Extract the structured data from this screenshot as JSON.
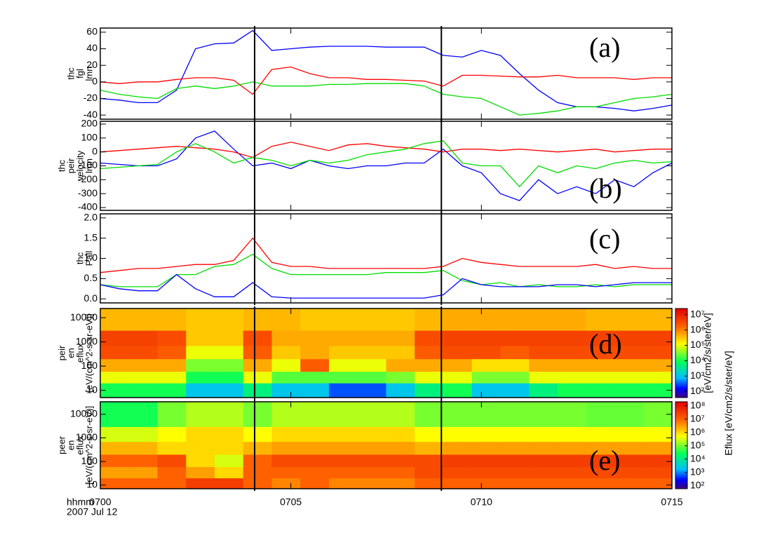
{
  "chart_data": [
    {
      "type": "line",
      "ylabel": [
        "thc",
        "fgl",
        "lmn"
      ],
      "annotation": "(a)",
      "xlim": [
        700,
        715
      ],
      "ylim": [
        -45,
        65
      ],
      "yticks": [
        -40,
        -20,
        0,
        20,
        40,
        60
      ],
      "vlines": [
        704.05,
        708.95
      ],
      "x": [
        700,
        700.5,
        701,
        701.5,
        702,
        702.5,
        703,
        703.5,
        704,
        704.5,
        705,
        705.5,
        706,
        706.5,
        707,
        707.5,
        708,
        708.5,
        709,
        709.5,
        710,
        710.5,
        711,
        711.5,
        712,
        712.5,
        713,
        713.5,
        714,
        714.5,
        715
      ],
      "series": [
        {
          "color": "#0000ff",
          "values": [
            -20,
            -22,
            -25,
            -25,
            -10,
            40,
            46,
            47,
            62,
            38,
            40,
            42,
            43,
            43,
            43,
            42,
            42,
            42,
            32,
            30,
            38,
            32,
            10,
            -10,
            -25,
            -30,
            -30,
            -32,
            -35,
            -32,
            -28
          ]
        },
        {
          "color": "#ff0000",
          "values": [
            0,
            -2,
            0,
            0,
            3,
            5,
            5,
            2,
            -15,
            15,
            18,
            10,
            5,
            5,
            3,
            3,
            2,
            1,
            -5,
            8,
            8,
            7,
            6,
            6,
            8,
            5,
            5,
            5,
            3,
            5,
            5
          ]
        },
        {
          "color": "#00dd00",
          "values": [
            -10,
            -15,
            -18,
            -20,
            -8,
            -5,
            -8,
            -5,
            0,
            -5,
            -5,
            -5,
            -3,
            -3,
            -2,
            -2,
            -2,
            -5,
            -15,
            -18,
            -20,
            -30,
            -40,
            -38,
            -35,
            -30,
            -30,
            -25,
            -20,
            -18,
            -15
          ]
        }
      ]
    },
    {
      "type": "line",
      "ylabel": [
        "thc",
        "peir",
        "velocity",
        "lmn"
      ],
      "annotation": "(b)",
      "xlim": [
        700,
        715
      ],
      "ylim": [
        -420,
        220
      ],
      "yticks": [
        200,
        100,
        0,
        -100,
        -200,
        -300,
        -400
      ],
      "vlines": [
        704.05,
        708.95
      ],
      "x": [
        700,
        700.5,
        701,
        701.5,
        702,
        702.5,
        703,
        703.5,
        704,
        704.5,
        705,
        705.5,
        706,
        706.5,
        707,
        707.5,
        708,
        708.5,
        709,
        709.5,
        710,
        710.5,
        711,
        711.5,
        712,
        712.5,
        713,
        713.5,
        714,
        714.5,
        715
      ],
      "series": [
        {
          "color": "#0000ff",
          "values": [
            -80,
            -90,
            -100,
            -100,
            -50,
            100,
            150,
            20,
            -100,
            -80,
            -120,
            -60,
            -100,
            -120,
            -100,
            -100,
            -80,
            -80,
            20,
            -100,
            -150,
            -300,
            -350,
            -200,
            -300,
            -250,
            -300,
            -200,
            -250,
            -150,
            -80
          ]
        },
        {
          "color": "#ff0000",
          "values": [
            0,
            10,
            20,
            30,
            40,
            30,
            20,
            0,
            -40,
            40,
            70,
            40,
            10,
            50,
            60,
            40,
            30,
            20,
            0,
            20,
            20,
            10,
            20,
            10,
            0,
            10,
            20,
            0,
            10,
            20,
            20
          ]
        },
        {
          "color": "#00dd00",
          "values": [
            -120,
            -110,
            -100,
            -90,
            0,
            60,
            0,
            -80,
            -40,
            -60,
            -100,
            -60,
            -80,
            -60,
            -20,
            0,
            20,
            60,
            80,
            -80,
            -100,
            -100,
            -250,
            -100,
            -150,
            -100,
            -120,
            -80,
            -60,
            -80,
            -70
          ]
        }
      ]
    },
    {
      "type": "line",
      "ylabel": [
        "thc",
        "Pall"
      ],
      "annotation": "(c)",
      "xlim": [
        700,
        715
      ],
      "ylim": [
        -0.1,
        2.1
      ],
      "yticks": [
        {
          "value": 0,
          "label": "0.0"
        },
        0.5,
        {
          "value": 1,
          "label": "1.0"
        },
        1.5,
        {
          "value": 2,
          "label": "2.0"
        }
      ],
      "vlines": [
        704.05,
        708.95
      ],
      "x": [
        700,
        700.5,
        701,
        701.5,
        702,
        702.5,
        703,
        703.5,
        704,
        704.5,
        705,
        705.5,
        706,
        706.5,
        707,
        707.5,
        708,
        708.5,
        709,
        709.5,
        710,
        710.5,
        711,
        711.5,
        712,
        712.5,
        713,
        713.5,
        714,
        714.5,
        715
      ],
      "series": [
        {
          "color": "#ff0000",
          "values": [
            0.65,
            0.7,
            0.75,
            0.75,
            0.8,
            0.85,
            0.85,
            0.95,
            1.5,
            0.9,
            0.8,
            0.8,
            0.75,
            0.75,
            0.75,
            0.75,
            0.75,
            0.75,
            0.8,
            1.0,
            0.9,
            0.85,
            0.8,
            0.8,
            0.8,
            0.8,
            0.85,
            0.75,
            0.8,
            0.75,
            0.75
          ]
        },
        {
          "color": "#00dd00",
          "values": [
            0.35,
            0.3,
            0.3,
            0.3,
            0.6,
            0.6,
            0.8,
            0.85,
            1.1,
            0.75,
            0.6,
            0.6,
            0.6,
            0.6,
            0.6,
            0.65,
            0.65,
            0.65,
            0.7,
            0.45,
            0.35,
            0.4,
            0.3,
            0.35,
            0.3,
            0.3,
            0.35,
            0.3,
            0.35,
            0.35,
            0.35
          ]
        },
        {
          "color": "#0000ff",
          "values": [
            0.35,
            0.25,
            0.2,
            0.2,
            0.6,
            0.25,
            0.05,
            0.05,
            0.4,
            0.05,
            0.02,
            0.02,
            0.02,
            0.02,
            0.02,
            0.02,
            0.02,
            0.02,
            0.1,
            0.5,
            0.35,
            0.3,
            0.3,
            0.3,
            0.35,
            0.35,
            0.3,
            0.35,
            0.4,
            0.4,
            0.4
          ]
        }
      ]
    },
    {
      "type": "heatmap",
      "ylabel": [
        "peir",
        "en",
        "eflux",
        "[eV/(cm^2-s-sr-eV)]"
      ],
      "annotation": "(d)",
      "zlabel": "[eV/cm2/s/ster/eV]",
      "log_y": true,
      "log_z": true,
      "colormap": "rainbow",
      "xlim": [
        700,
        715
      ],
      "ylim": [
        5,
        24000
      ],
      "yticks": [
        10,
        100,
        1000,
        10000
      ],
      "vlines": [
        704.05,
        708.95
      ],
      "zlim": [
        40,
        25000000
      ],
      "zticks": [
        {
          "value": 100,
          "label": "10²"
        },
        {
          "value": 1000,
          "label": "10³"
        },
        {
          "value": 10000,
          "label": "10⁴"
        },
        {
          "value": 100000,
          "label": "10⁵"
        },
        {
          "value": 1000000,
          "label": "10⁶"
        },
        {
          "value": 10000000,
          "label": "10⁷"
        }
      ],
      "x_bins": [
        700,
        700.75,
        701.5,
        702.25,
        703,
        703.75,
        704.5,
        705.25,
        706,
        706.75,
        707.5,
        708.25,
        709,
        709.75,
        710.5,
        711.25,
        712,
        712.75,
        713.5,
        714.25,
        715
      ],
      "y_bins": [
        5,
        20,
        60,
        200,
        700,
        3000,
        24000
      ],
      "z": [
        [
          10000.0,
          10000.0,
          10000.0,
          1000.0,
          1000.0,
          5000.0,
          1000.0,
          1000.0,
          300.0,
          300.0,
          1000.0,
          5000.0,
          10000.0,
          1000.0,
          1000.0,
          5000.0,
          10000.0,
          10000.0,
          10000.0,
          10000.0
        ],
        [
          100000.0,
          100000.0,
          100000.0,
          10000.0,
          10000.0,
          100000.0,
          20000.0,
          20000.0,
          20000.0,
          20000.0,
          30000.0,
          100000.0,
          100000.0,
          30000.0,
          30000.0,
          100000.0,
          100000.0,
          100000.0,
          100000.0,
          100000.0
        ],
        [
          500000.0,
          500000.0,
          500000.0,
          30000.0,
          30000.0,
          500000.0,
          100000.0,
          2000000.0,
          100000.0,
          100000.0,
          500000.0,
          500000.0,
          500000.0,
          200000.0,
          200000.0,
          500000.0,
          500000.0,
          500000.0,
          500000.0,
          500000.0
        ],
        [
          3000000.0,
          3000000.0,
          2000000.0,
          100000.0,
          100000.0,
          2000000.0,
          300000.0,
          500000.0,
          300000.0,
          300000.0,
          300000.0,
          2000000.0,
          3000000.0,
          3000000.0,
          2000000.0,
          3000000.0,
          3000000.0,
          3000000.0,
          3000000.0,
          3000000.0
        ],
        [
          4000000.0,
          4000000.0,
          3000000.0,
          300000.0,
          300000.0,
          3000000.0,
          500000.0,
          500000.0,
          500000.0,
          500000.0,
          500000.0,
          3000000.0,
          4000000.0,
          4000000.0,
          4000000.0,
          4000000.0,
          4000000.0,
          4000000.0,
          4000000.0,
          4000000.0
        ],
        [
          400000.0,
          400000.0,
          400000.0,
          300000.0,
          300000.0,
          400000.0,
          400000.0,
          300000.0,
          300000.0,
          300000.0,
          300000.0,
          400000.0,
          500000.0,
          500000.0,
          500000.0,
          500000.0,
          500000.0,
          400000.0,
          400000.0,
          400000.0
        ]
      ]
    },
    {
      "type": "heatmap",
      "ylabel": [
        "peer",
        "en",
        "eflux",
        "[eV/(cm^2-s-sr-eV)]"
      ],
      "annotation": "(e)",
      "zlabel": "Eflux [eV/cm2/s/ster/eV]",
      "log_y": true,
      "log_z": true,
      "colormap": "rainbow",
      "xlim": [
        700,
        715
      ],
      "ylim": [
        7,
        34000
      ],
      "yticks": [
        10,
        100,
        1000,
        10000
      ],
      "vlines": [
        704.05,
        708.95
      ],
      "xticks": [
        {
          "value": 700,
          "label": "0700"
        },
        {
          "value": 705,
          "label": "0705"
        },
        {
          "value": 710,
          "label": "0710"
        },
        {
          "value": 715,
          "label": "0715"
        }
      ],
      "xlabel": [
        "hhmm",
        "2007 Jul 12"
      ],
      "zlim": [
        60,
        200000000
      ],
      "zticks": [
        {
          "value": 100,
          "label": "10²"
        },
        {
          "value": 1000,
          "label": "10³"
        },
        {
          "value": 10000,
          "label": "10⁴"
        },
        {
          "value": 100000,
          "label": "10⁵"
        },
        {
          "value": 1000000,
          "label": "10⁶"
        },
        {
          "value": 10000000,
          "label": "10⁷"
        },
        {
          "value": 100000000,
          "label": "10⁸"
        }
      ],
      "x_bins": [
        700,
        700.75,
        701.5,
        702.25,
        703,
        703.75,
        704.5,
        705.25,
        706,
        706.75,
        707.5,
        708.25,
        709,
        709.75,
        710.5,
        711.25,
        712,
        712.75,
        713.5,
        714.25,
        715
      ],
      "y_bins": [
        7,
        20,
        60,
        200,
        700,
        3000,
        34000
      ],
      "z": [
        [
          10000000.0,
          10000000.0,
          10000000.0,
          30000000.0,
          30000000.0,
          10000000.0,
          5000000.0,
          10000000.0,
          5000000.0,
          5000000.0,
          5000000.0,
          10000000.0,
          10000000.0,
          10000000.0,
          10000000.0,
          10000000.0,
          10000000.0,
          10000000.0,
          10000000.0,
          10000000.0
        ],
        [
          3000000.0,
          3000000.0,
          10000000.0,
          3000000.0,
          1000000.0,
          10000000.0,
          10000000.0,
          10000000.0,
          10000000.0,
          10000000.0,
          10000000.0,
          20000000.0,
          20000000.0,
          20000000.0,
          20000000.0,
          20000000.0,
          20000000.0,
          20000000.0,
          20000000.0,
          20000000.0
        ],
        [
          10000000.0,
          10000000.0,
          20000000.0,
          1000000.0,
          300000.0,
          10000000.0,
          20000000.0,
          20000000.0,
          20000000.0,
          20000000.0,
          20000000.0,
          20000000.0,
          30000000.0,
          30000000.0,
          30000000.0,
          30000000.0,
          30000000.0,
          30000000.0,
          30000000.0,
          30000000.0
        ],
        [
          2000000.0,
          2000000.0,
          1000000.0,
          1000000.0,
          1000000.0,
          2000000.0,
          3000000.0,
          3000000.0,
          3000000.0,
          3000000.0,
          3000000.0,
          2000000.0,
          3000000.0,
          3000000.0,
          3000000.0,
          3000000.0,
          3000000.0,
          3000000.0,
          3000000.0,
          3000000.0
        ],
        [
          300000.0,
          300000.0,
          500000.0,
          1000000.0,
          1000000.0,
          500000.0,
          1000000.0,
          1000000.0,
          1000000.0,
          1000000.0,
          1000000.0,
          500000.0,
          500000.0,
          500000.0,
          500000.0,
          500000.0,
          500000.0,
          500000.0,
          500000.0,
          500000.0
        ],
        [
          30000.0,
          30000.0,
          100000.0,
          200000.0,
          200000.0,
          100000.0,
          200000.0,
          200000.0,
          200000.0,
          200000.0,
          200000.0,
          100000.0,
          100000.0,
          100000.0,
          100000.0,
          100000.0,
          100000.0,
          80000.0,
          80000.0,
          100000.0
        ]
      ]
    }
  ]
}
